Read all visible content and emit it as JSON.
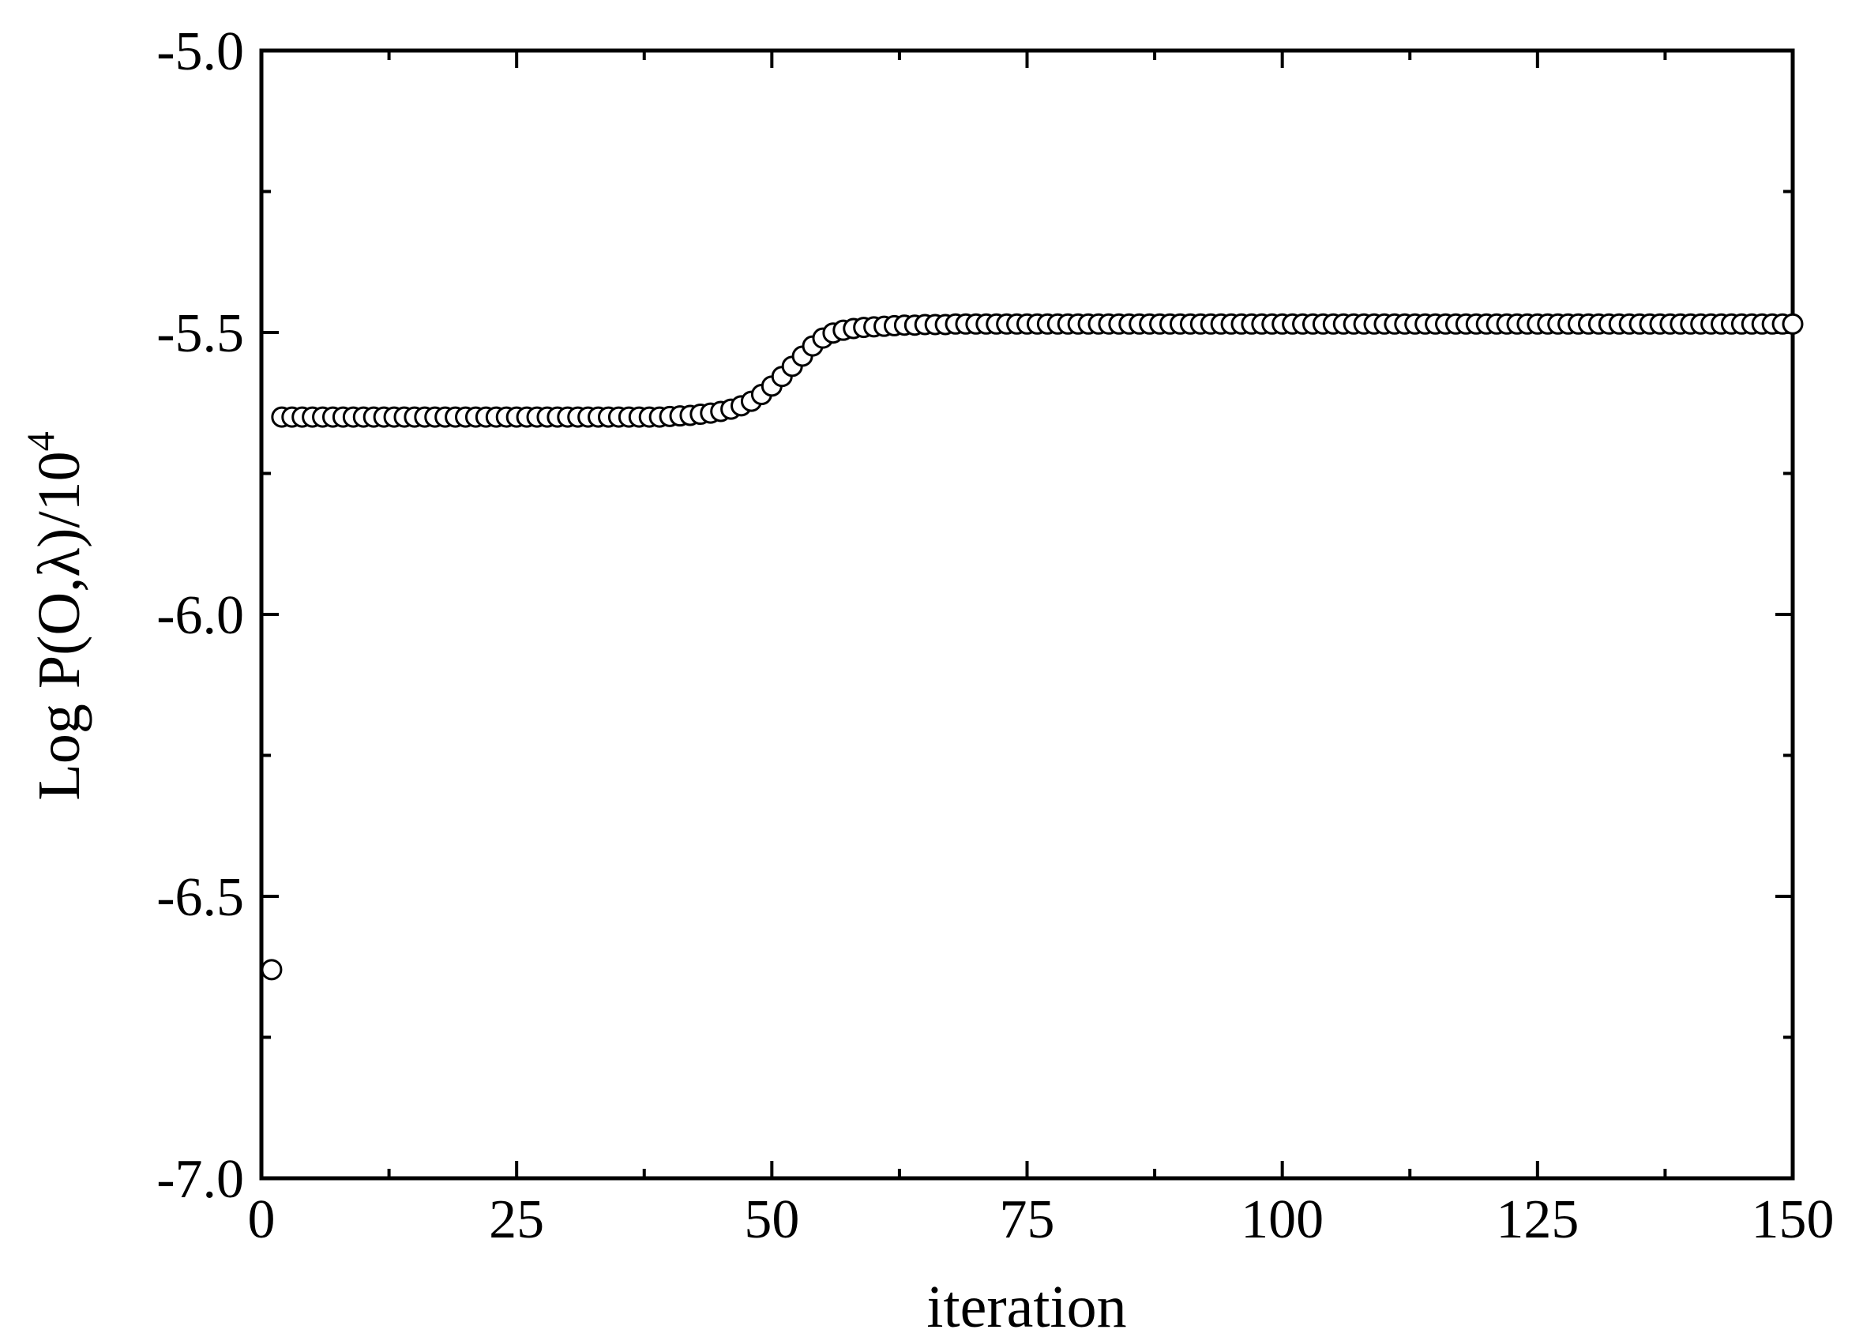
{
  "chart_data": {
    "type": "scatter",
    "xlabel": "iteration",
    "ylabel": "Log P(O,λ)/10",
    "ylabel_superscript": "4",
    "xlim": [
      0,
      150
    ],
    "ylim": [
      -7.0,
      -5.0
    ],
    "x_ticks": [
      0,
      25,
      50,
      75,
      100,
      125,
      150
    ],
    "x_tick_labels": [
      "0",
      "25",
      "50",
      "75",
      "100",
      "125",
      "150"
    ],
    "y_ticks": [
      -5.0,
      -5.5,
      -6.0,
      -6.5,
      -7.0
    ],
    "y_tick_labels": [
      "-5.0",
      "-5.5",
      "-6.0",
      "-6.5",
      "-7.0"
    ],
    "grid": false,
    "marker": "open-circle",
    "series": [
      {
        "x": [
          1,
          2,
          3,
          4,
          5,
          6,
          7,
          8,
          9,
          10,
          11,
          12,
          13,
          14,
          15,
          16,
          17,
          18,
          19,
          20,
          21,
          22,
          23,
          24,
          25,
          26,
          27,
          28,
          29,
          30,
          31,
          32,
          33,
          34,
          35,
          36,
          37,
          38,
          39,
          40,
          41,
          42,
          43,
          44,
          45,
          46,
          47,
          48,
          49,
          50,
          51,
          52,
          53,
          54,
          55,
          56,
          57,
          58,
          59,
          60,
          61,
          62,
          63,
          64,
          65,
          66,
          67,
          68,
          69,
          70,
          71,
          72,
          73,
          74,
          75,
          76,
          77,
          78,
          79,
          80,
          81,
          82,
          83,
          84,
          85,
          86,
          87,
          88,
          89,
          90,
          91,
          92,
          93,
          94,
          95,
          96,
          97,
          98,
          99,
          100,
          101,
          102,
          103,
          104,
          105,
          106,
          107,
          108,
          109,
          110,
          111,
          112,
          113,
          114,
          115,
          116,
          117,
          118,
          119,
          120,
          121,
          122,
          123,
          124,
          125,
          126,
          127,
          128,
          129,
          130,
          131,
          132,
          133,
          134,
          135,
          136,
          137,
          138,
          139,
          140,
          141,
          142,
          143,
          144,
          145,
          146,
          147,
          148,
          149,
          150
        ],
        "y": [
          -6.63,
          -5.65,
          -5.65,
          -5.65,
          -5.65,
          -5.65,
          -5.65,
          -5.65,
          -5.65,
          -5.65,
          -5.65,
          -5.65,
          -5.65,
          -5.65,
          -5.65,
          -5.65,
          -5.65,
          -5.65,
          -5.65,
          -5.65,
          -5.65,
          -5.65,
          -5.65,
          -5.65,
          -5.65,
          -5.65,
          -5.65,
          -5.65,
          -5.65,
          -5.65,
          -5.65,
          -5.65,
          -5.65,
          -5.65,
          -5.65,
          -5.65,
          -5.65,
          -5.65,
          -5.65,
          -5.649,
          -5.648,
          -5.647,
          -5.645,
          -5.643,
          -5.64,
          -5.636,
          -5.63,
          -5.622,
          -5.61,
          -5.595,
          -5.578,
          -5.56,
          -5.542,
          -5.524,
          -5.51,
          -5.501,
          -5.496,
          -5.493,
          -5.491,
          -5.49,
          -5.489,
          -5.488,
          -5.487,
          -5.487,
          -5.486,
          -5.486,
          -5.486,
          -5.485,
          -5.485,
          -5.485,
          -5.485,
          -5.485,
          -5.485,
          -5.485,
          -5.485,
          -5.485,
          -5.485,
          -5.485,
          -5.485,
          -5.485,
          -5.485,
          -5.485,
          -5.485,
          -5.485,
          -5.485,
          -5.485,
          -5.485,
          -5.485,
          -5.485,
          -5.485,
          -5.485,
          -5.485,
          -5.485,
          -5.485,
          -5.485,
          -5.485,
          -5.485,
          -5.485,
          -5.485,
          -5.485,
          -5.485,
          -5.485,
          -5.485,
          -5.485,
          -5.485,
          -5.485,
          -5.485,
          -5.485,
          -5.485,
          -5.485,
          -5.485,
          -5.485,
          -5.485,
          -5.485,
          -5.485,
          -5.485,
          -5.485,
          -5.485,
          -5.485,
          -5.485,
          -5.485,
          -5.485,
          -5.485,
          -5.485,
          -5.485,
          -5.485,
          -5.485,
          -5.485,
          -5.485,
          -5.485,
          -5.485,
          -5.485,
          -5.485,
          -5.485,
          -5.485,
          -5.485,
          -5.485,
          -5.485,
          -5.485,
          -5.485,
          -5.485,
          -5.485,
          -5.485,
          -5.485,
          -5.485,
          -5.485,
          -5.485,
          -5.485,
          -5.485,
          -5.485
        ]
      }
    ]
  }
}
